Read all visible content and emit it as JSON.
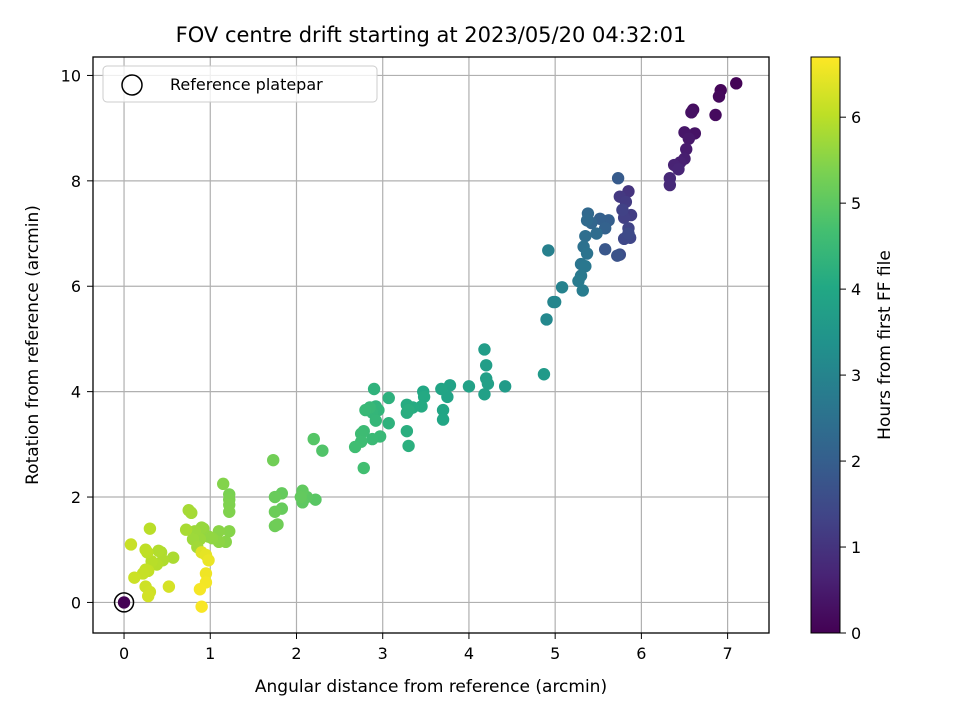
{
  "chart_data": {
    "type": "scatter",
    "title": "FOV centre drift starting at 2023/05/20 04:32:01",
    "xlabel": "Angular distance from reference (arcmin)",
    "ylabel": "Rotation from reference (arcmin)",
    "xlim": [
      -0.36,
      7.48
    ],
    "ylim": [
      -0.58,
      10.35
    ],
    "xticks": [
      0,
      1,
      2,
      3,
      4,
      5,
      6,
      7
    ],
    "yticks": [
      0,
      2,
      4,
      6,
      8,
      10
    ],
    "grid": true,
    "legend": {
      "location": "upper-left",
      "entries": [
        "Reference platepar"
      ]
    },
    "colorbar": {
      "label": "Hours from first FF file",
      "range": [
        0,
        6.7
      ],
      "ticks": [
        0,
        1,
        2,
        3,
        4,
        5,
        6
      ],
      "colormap": "viridis"
    },
    "reference_point": {
      "x": 0,
      "y": 0,
      "label": "Reference platepar"
    },
    "series": [
      {
        "name": "",
        "points": [
          [
            0,
            0,
            0.0
          ],
          [
            7.1,
            9.85,
            0.05
          ],
          [
            6.92,
            9.72,
            0.1
          ],
          [
            6.9,
            9.6,
            0.15
          ],
          [
            6.86,
            9.25,
            0.2
          ],
          [
            6.6,
            9.35,
            0.25
          ],
          [
            6.58,
            9.3,
            0.3
          ],
          [
            6.62,
            8.9,
            0.35
          ],
          [
            6.5,
            8.92,
            0.4
          ],
          [
            6.55,
            8.8,
            0.45
          ],
          [
            6.52,
            8.6,
            0.5
          ],
          [
            6.5,
            8.42,
            0.55
          ],
          [
            6.45,
            8.35,
            0.6
          ],
          [
            6.38,
            8.3,
            0.65
          ],
          [
            6.43,
            8.22,
            0.7
          ],
          [
            6.33,
            8.05,
            0.75
          ],
          [
            6.33,
            7.92,
            0.8
          ],
          [
            5.85,
            7.8,
            1.0
          ],
          [
            5.75,
            7.7,
            1.1
          ],
          [
            5.82,
            7.6,
            1.15
          ],
          [
            5.88,
            7.35,
            1.2
          ],
          [
            5.8,
            7.3,
            1.25
          ],
          [
            5.78,
            7.45,
            1.3
          ],
          [
            5.85,
            7.1,
            1.35
          ],
          [
            5.87,
            6.92,
            1.4
          ],
          [
            5.8,
            6.9,
            1.45
          ],
          [
            5.85,
            7.0,
            1.5
          ],
          [
            5.75,
            6.6,
            1.6
          ],
          [
            5.72,
            6.58,
            1.7
          ],
          [
            5.58,
            6.7,
            1.8
          ],
          [
            5.73,
            8.05,
            1.9
          ],
          [
            5.62,
            7.25,
            2.0
          ],
          [
            5.52,
            7.28,
            2.05
          ],
          [
            5.58,
            7.1,
            2.1
          ],
          [
            5.42,
            7.2,
            2.2
          ],
          [
            5.38,
            7.38,
            2.25
          ],
          [
            5.37,
            7.25,
            2.3
          ],
          [
            5.48,
            7.0,
            2.35
          ],
          [
            5.35,
            6.95,
            2.4
          ],
          [
            5.33,
            6.75,
            2.5
          ],
          [
            5.37,
            6.62,
            2.55
          ],
          [
            5.3,
            6.42,
            2.6
          ],
          [
            5.35,
            6.38,
            2.65
          ],
          [
            5.3,
            6.2,
            2.7
          ],
          [
            5.27,
            6.1,
            2.75
          ],
          [
            5.32,
            5.92,
            2.8
          ],
          [
            4.92,
            6.68,
            2.9
          ],
          [
            5.08,
            5.98,
            2.95
          ],
          [
            4.98,
            5.7,
            3.0
          ],
          [
            5.0,
            5.7,
            3.05
          ],
          [
            4.9,
            5.37,
            3.1
          ],
          [
            4.87,
            4.33,
            3.6
          ],
          [
            4.42,
            4.1,
            3.65
          ],
          [
            4.18,
            4.8,
            3.7
          ],
          [
            4.2,
            4.5,
            3.72
          ],
          [
            4.2,
            4.25,
            3.75
          ],
          [
            4.22,
            4.15,
            3.78
          ],
          [
            4.18,
            3.95,
            3.8
          ],
          [
            4.0,
            4.1,
            3.82
          ],
          [
            3.78,
            4.12,
            3.85
          ],
          [
            3.75,
            3.9,
            3.88
          ],
          [
            3.68,
            4.05,
            3.9
          ],
          [
            3.7,
            3.65,
            3.93
          ],
          [
            3.7,
            3.47,
            3.96
          ],
          [
            3.47,
            4.0,
            4.0
          ],
          [
            3.48,
            3.9,
            4.05
          ],
          [
            3.45,
            3.72,
            4.08
          ],
          [
            3.35,
            3.7,
            4.1
          ],
          [
            3.28,
            3.75,
            4.12
          ],
          [
            3.28,
            3.6,
            4.15
          ],
          [
            3.3,
            3.65,
            4.18
          ],
          [
            3.28,
            3.25,
            4.2
          ],
          [
            3.3,
            2.97,
            4.22
          ],
          [
            3.07,
            3.88,
            4.25
          ],
          [
            3.07,
            3.4,
            4.28
          ],
          [
            2.9,
            4.05,
            4.3
          ],
          [
            2.92,
            3.72,
            4.33
          ],
          [
            2.95,
            3.65,
            4.36
          ],
          [
            2.88,
            3.6,
            4.4
          ],
          [
            2.92,
            3.45,
            4.42
          ],
          [
            2.85,
            3.7,
            4.45
          ],
          [
            2.8,
            3.65,
            4.48
          ],
          [
            2.97,
            3.15,
            4.5
          ],
          [
            2.88,
            3.1,
            4.52
          ],
          [
            2.78,
            3.25,
            4.55
          ],
          [
            2.75,
            3.2,
            4.58
          ],
          [
            2.75,
            3.05,
            4.6
          ],
          [
            2.68,
            2.95,
            4.62
          ],
          [
            2.78,
            2.55,
            4.65
          ],
          [
            2.3,
            2.88,
            4.85
          ],
          [
            2.2,
            3.1,
            4.9
          ],
          [
            2.22,
            1.95,
            4.95
          ],
          [
            2.12,
            2.0,
            5.0
          ],
          [
            2.07,
            1.9,
            5.02
          ],
          [
            2.07,
            2.12,
            5.05
          ],
          [
            2.05,
            2.0,
            5.08
          ],
          [
            1.83,
            2.07,
            5.1
          ],
          [
            1.83,
            1.78,
            5.12
          ],
          [
            1.75,
            2.0,
            5.15
          ],
          [
            1.75,
            1.72,
            5.18
          ],
          [
            1.75,
            1.45,
            5.2
          ],
          [
            1.78,
            1.48,
            5.22
          ],
          [
            1.73,
            2.7,
            5.25
          ],
          [
            1.22,
            2.05,
            5.35
          ],
          [
            1.22,
            1.95,
            5.38
          ],
          [
            1.22,
            1.85,
            5.4
          ],
          [
            1.22,
            1.72,
            5.42
          ],
          [
            1.15,
            2.25,
            5.45
          ],
          [
            1.22,
            1.35,
            5.48
          ],
          [
            1.18,
            1.15,
            5.5
          ],
          [
            1.1,
            1.35,
            5.52
          ],
          [
            1.1,
            1.15,
            5.55
          ],
          [
            1.02,
            1.22,
            5.58
          ],
          [
            0.98,
            1.25,
            5.6
          ],
          [
            0.92,
            1.4,
            5.62
          ],
          [
            0.9,
            1.42,
            5.65
          ],
          [
            0.88,
            1.2,
            5.68
          ],
          [
            0.82,
            1.35,
            5.7
          ],
          [
            0.8,
            1.2,
            5.72
          ],
          [
            0.85,
            1.05,
            5.75
          ],
          [
            0.78,
            1.7,
            5.78
          ],
          [
            0.75,
            1.75,
            5.8
          ],
          [
            0.72,
            1.38,
            5.82
          ],
          [
            0.57,
            0.85,
            5.85
          ],
          [
            0.43,
            0.95,
            5.88
          ],
          [
            0.45,
            0.8,
            5.9
          ],
          [
            0.4,
            0.98,
            5.92
          ],
          [
            0.38,
            0.72,
            5.95
          ],
          [
            0.32,
            0.78,
            5.98
          ],
          [
            0.3,
            1.4,
            6.0
          ],
          [
            0.27,
            0.95,
            6.02
          ],
          [
            0.25,
            1.0,
            6.05
          ],
          [
            0.28,
            0.6,
            6.08
          ],
          [
            0.25,
            0.62,
            6.1
          ],
          [
            0.22,
            0.55,
            6.12
          ],
          [
            0.08,
            1.1,
            6.15
          ],
          [
            0.12,
            0.47,
            6.18
          ],
          [
            0.25,
            0.3,
            6.2
          ],
          [
            0.3,
            0.2,
            6.22
          ],
          [
            0.28,
            0.12,
            6.25
          ],
          [
            0.52,
            0.3,
            6.28
          ],
          [
            0.9,
            0.95,
            6.4
          ],
          [
            0.95,
            0.9,
            6.45
          ],
          [
            0.98,
            0.8,
            6.5
          ],
          [
            0.95,
            0.55,
            6.55
          ],
          [
            0.95,
            0.38,
            6.6
          ],
          [
            0.88,
            0.25,
            6.62
          ],
          [
            0.9,
            -0.08,
            6.65
          ]
        ]
      }
    ]
  }
}
